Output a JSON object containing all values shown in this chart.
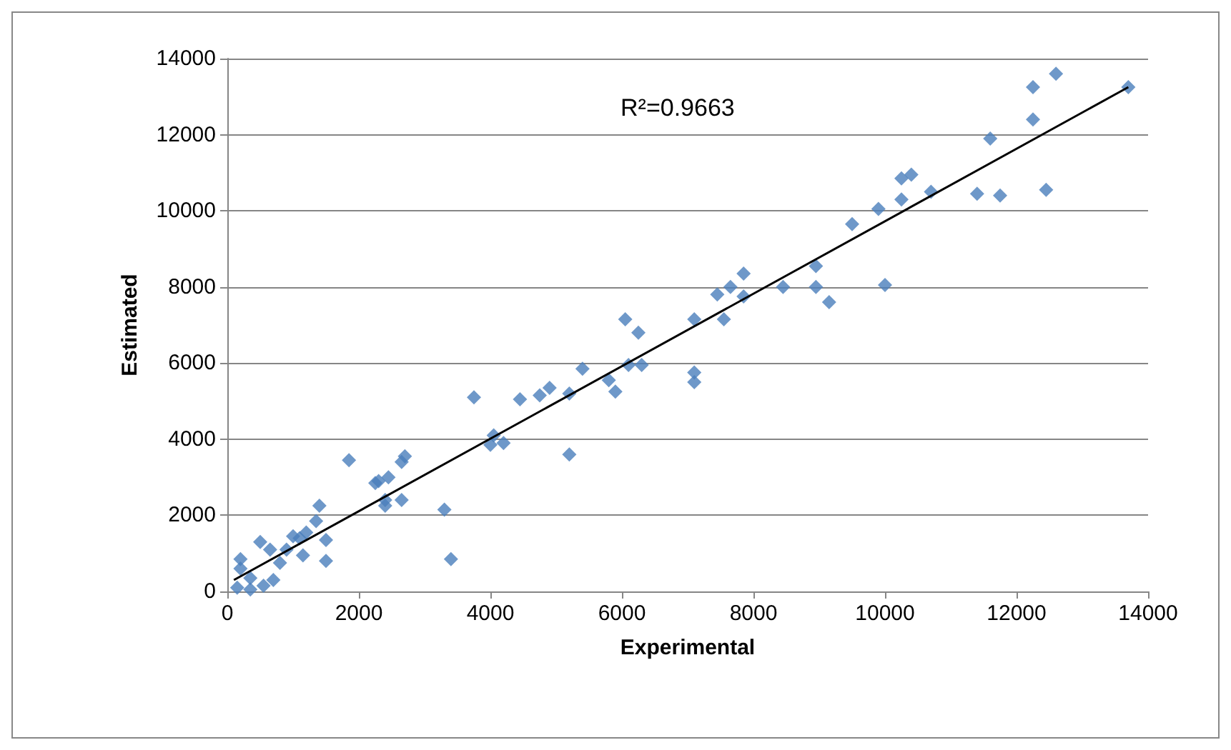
{
  "chart_data": {
    "type": "scatter",
    "xlabel": "Experimental",
    "ylabel": "Estimated",
    "annotations": [
      "R²=0.9663"
    ],
    "xlim": [
      0,
      14000
    ],
    "xticks": [
      0,
      2000,
      4000,
      6000,
      8000,
      10000,
      12000,
      14000
    ],
    "ylim": [
      0,
      14000
    ],
    "yticks": [
      0,
      2000,
      4000,
      6000,
      8000,
      10000,
      12000,
      14000
    ],
    "grid": "y",
    "marker": "diamond",
    "series": [
      {
        "color": "#4a7ebb",
        "x": [
          200,
          200,
          350,
          150,
          350,
          550,
          700,
          500,
          800,
          900,
          1000,
          1100,
          1150,
          650,
          1200,
          1350,
          1400,
          1500,
          1500,
          1850,
          2250,
          2300,
          2400,
          2450,
          2400,
          2650,
          2650,
          2700,
          3300,
          3400,
          3750,
          4000,
          4050,
          4200,
          4450,
          4750,
          4900,
          5200,
          5200,
          5400,
          5800,
          5900,
          6050,
          6100,
          6250,
          6300,
          7100,
          7100,
          7100,
          7450,
          7550,
          7650,
          7850,
          7850,
          8450,
          8950,
          8950,
          9150,
          9500,
          9900,
          10000,
          10250,
          10250,
          10400,
          10700,
          11400,
          11600,
          11750,
          12250,
          12250,
          12450,
          12600,
          13700
        ],
        "values": [
          850,
          600,
          350,
          100,
          50,
          150,
          300,
          1300,
          750,
          1100,
          1450,
          1400,
          950,
          1100,
          1550,
          1850,
          2250,
          1350,
          800,
          3450,
          2850,
          2900,
          2250,
          3000,
          2400,
          2400,
          3400,
          3550,
          2150,
          850,
          5100,
          3850,
          4100,
          3900,
          5050,
          5150,
          5350,
          3600,
          5200,
          5850,
          5550,
          5250,
          7150,
          5950,
          6800,
          5950,
          7150,
          5750,
          5500,
          7800,
          7150,
          8000,
          8350,
          7750,
          8000,
          8000,
          8550,
          7600,
          9650,
          10050,
          8050,
          10850,
          10300,
          10950,
          10500,
          10450,
          11900,
          10400,
          12400,
          13250,
          10550,
          13600,
          13250
        ]
      },
      {
        "type": "line",
        "color": "#000000",
        "marker": "none",
        "x": [
          100,
          13700
        ],
        "values": [
          300,
          13250
        ]
      }
    ]
  }
}
